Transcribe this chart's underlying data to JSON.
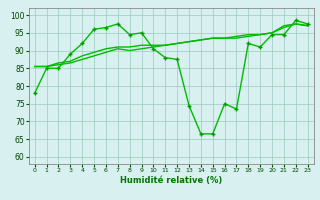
{
  "x": [
    0,
    1,
    2,
    3,
    4,
    5,
    6,
    7,
    8,
    9,
    10,
    11,
    12,
    13,
    14,
    15,
    16,
    17,
    18,
    19,
    20,
    21,
    22,
    23
  ],
  "line1": [
    85.5,
    85.5,
    86.0,
    86.5,
    87.5,
    88.5,
    89.5,
    90.5,
    90.0,
    90.5,
    91.0,
    91.5,
    92.0,
    92.5,
    93.0,
    93.5,
    93.5,
    93.5,
    94.0,
    94.5,
    95.0,
    96.5,
    97.5,
    97.0
  ],
  "line2": [
    85.5,
    85.5,
    86.5,
    87.0,
    88.5,
    89.5,
    90.5,
    91.0,
    91.0,
    91.5,
    91.5,
    91.5,
    92.0,
    92.5,
    93.0,
    93.5,
    93.5,
    94.0,
    94.5,
    94.5,
    95.0,
    97.0,
    97.5,
    97.0
  ],
  "line3": [
    78,
    85,
    85,
    89,
    92,
    96,
    96.5,
    97.5,
    94.5,
    95,
    90.5,
    88,
    87.5,
    74.5,
    66.5,
    66.5,
    75.0,
    73.5,
    92,
    91.0,
    94.5,
    94.5,
    98.5,
    97.5
  ],
  "line_color": "#00bb00",
  "marker_color": "#009900",
  "bg_color": "#d8f0f0",
  "grid_color": "#99ccbb",
  "xlabel": "Humidité relative (%)",
  "ylim": [
    58,
    102
  ],
  "xlim": [
    -0.5,
    23.5
  ],
  "yticks": [
    60,
    65,
    70,
    75,
    80,
    85,
    90,
    95,
    100
  ],
  "xticks": [
    0,
    1,
    2,
    3,
    4,
    5,
    6,
    7,
    8,
    9,
    10,
    11,
    12,
    13,
    14,
    15,
    16,
    17,
    18,
    19,
    20,
    21,
    22,
    23
  ]
}
